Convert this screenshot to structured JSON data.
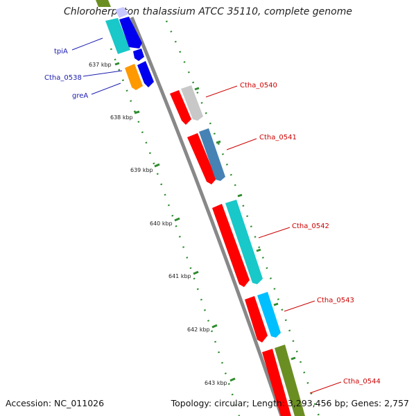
{
  "title": "Chloroherpeton thalassium ATCC 35110, complete genome",
  "footer": {
    "accession": "Accession: NC_011026",
    "summary": "Topology: circular; Length: 3,293,456 bp; Genes: 2,757"
  },
  "ticks": [
    "637 kbp",
    "638 kbp",
    "639 kbp",
    "640 kbp",
    "641 kbp",
    "642 kbp",
    "643 kbp"
  ],
  "gene_labels_left": [
    "tpiA",
    "Ctha_0538",
    "greA"
  ],
  "gene_labels_right": [
    "Ctha_0540",
    "Ctha_0541",
    "Ctha_0542",
    "Ctha_0543",
    "Ctha_0544"
  ],
  "colors": {
    "backbone": "#8a8a8a",
    "cds_red": "#ff0000",
    "blue": "#0000ee",
    "cyan": "#19c8c8",
    "orange": "#ff9900",
    "gray": "#c8c8c8",
    "steelblue": "#4682b4",
    "lightblue": "#00bfff",
    "olive": "#6b8e23",
    "tick_green": "#2e8b2e",
    "label_red": "#cc0000",
    "label_blue": "#1a1ab0"
  }
}
